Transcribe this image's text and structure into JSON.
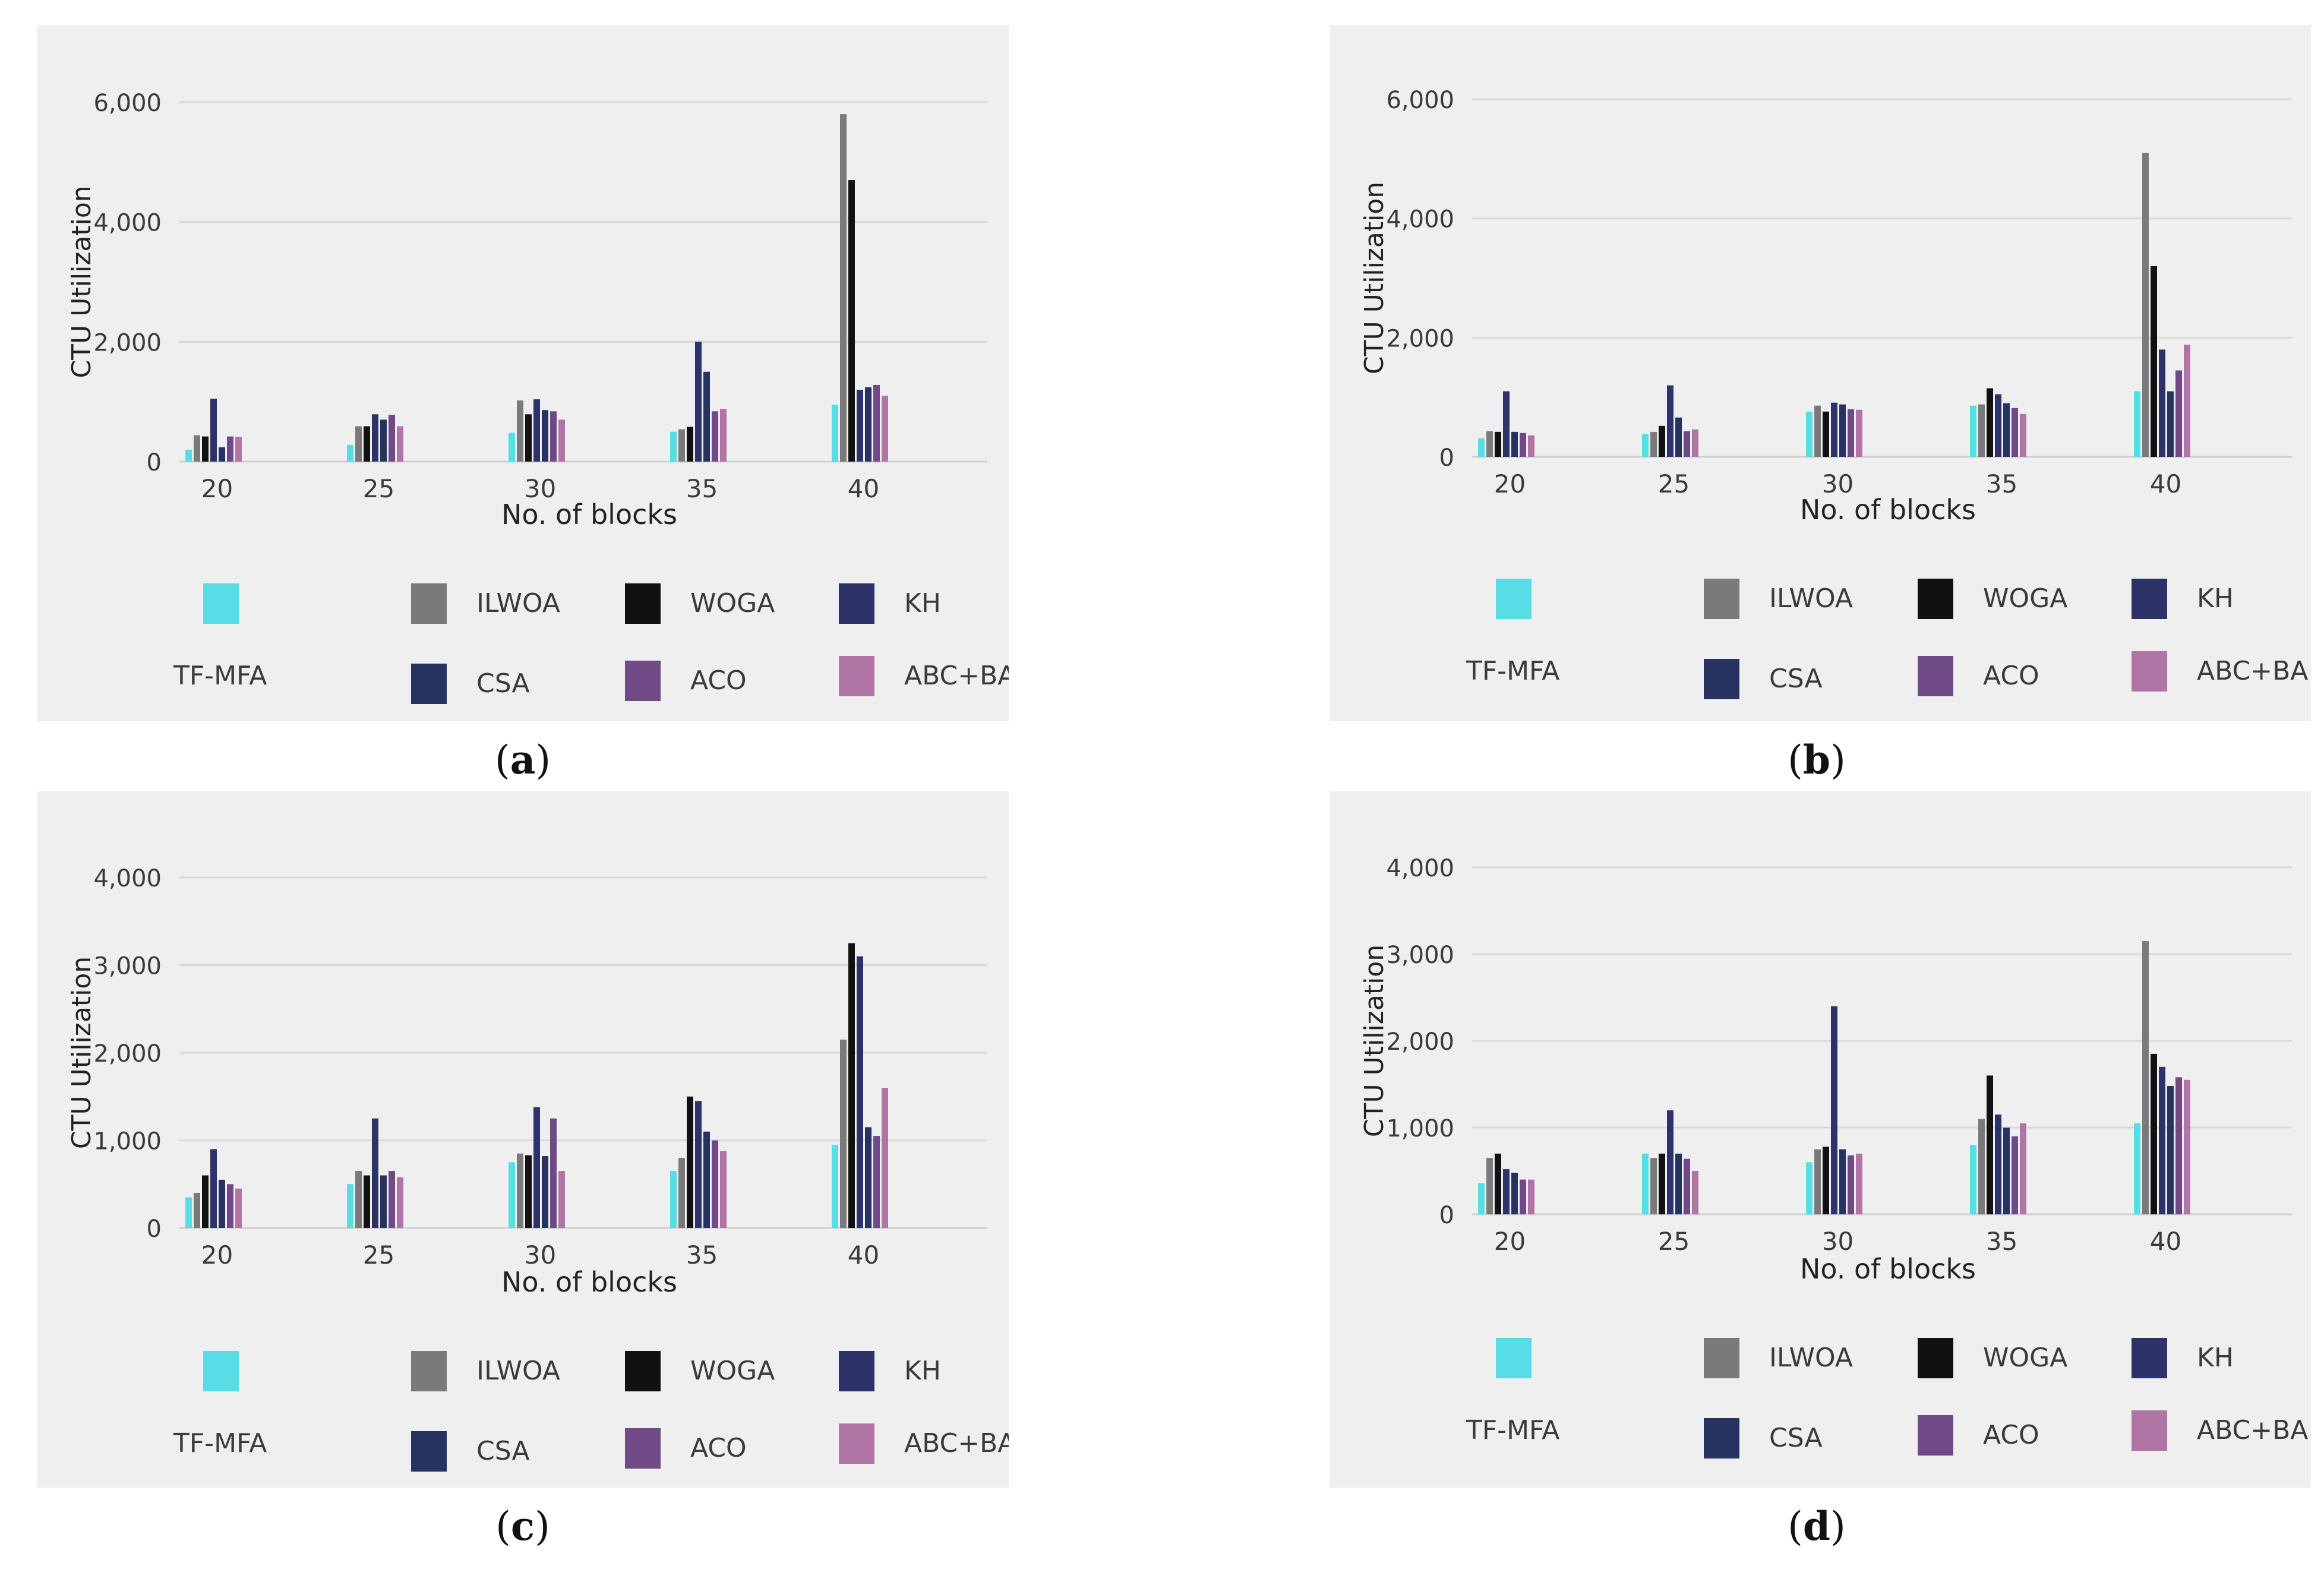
{
  "legend": {
    "series": [
      {
        "name": "TF-MFA",
        "color": "#56dde6"
      },
      {
        "name": "ILWOA",
        "color": "#7a7a7a"
      },
      {
        "name": "WOGA",
        "color": "#111111"
      },
      {
        "name": "KH",
        "color": "#2d3268"
      },
      {
        "name": "CSA",
        "color": "#273260"
      },
      {
        "name": "ACO",
        "color": "#704a86"
      },
      {
        "name": "ABC+BA",
        "color": "#b075a4"
      }
    ]
  },
  "chart_data": [
    {
      "type": "bar",
      "panel": "a",
      "caption_letter": "a",
      "xlabel": "No. of blocks",
      "ylabel": "CTU Utilization",
      "categories": [
        "20",
        "25",
        "30",
        "35",
        "40"
      ],
      "ylim": [
        0,
        6000
      ],
      "yticks": [
        "0",
        "2,000",
        "4,000",
        "6,000"
      ],
      "ytick_values": [
        0,
        2000,
        4000,
        6000
      ],
      "series": [
        {
          "name": "TF-MFA",
          "values": [
            200,
            280,
            480,
            500,
            950
          ]
        },
        {
          "name": "ILWOA",
          "values": [
            440,
            590,
            1020,
            540,
            5800
          ]
        },
        {
          "name": "WOGA",
          "values": [
            420,
            590,
            790,
            580,
            4700
          ]
        },
        {
          "name": "KH",
          "values": [
            1050,
            790,
            1040,
            2000,
            1200
          ]
        },
        {
          "name": "CSA",
          "values": [
            240,
            700,
            860,
            1500,
            1240
          ]
        },
        {
          "name": "ACO",
          "values": [
            420,
            780,
            840,
            840,
            1280
          ]
        },
        {
          "name": "ABC+BA",
          "values": [
            410,
            590,
            700,
            880,
            1100
          ]
        }
      ]
    },
    {
      "type": "bar",
      "panel": "b",
      "caption_letter": "b",
      "xlabel": "No. of blocks",
      "ylabel": "CTU Utilization",
      "categories": [
        "20",
        "25",
        "30",
        "35",
        "40"
      ],
      "ylim": [
        0,
        6000
      ],
      "yticks": [
        "0",
        "2,000",
        "4,000",
        "6,000"
      ],
      "ytick_values": [
        0,
        2000,
        4000,
        6000
      ],
      "series": [
        {
          "name": "TF-MFA",
          "values": [
            310,
            380,
            760,
            860,
            1100
          ]
        },
        {
          "name": "ILWOA",
          "values": [
            430,
            420,
            860,
            880,
            5100
          ]
        },
        {
          "name": "WOGA",
          "values": [
            420,
            520,
            760,
            1150,
            3200
          ]
        },
        {
          "name": "KH",
          "values": [
            1100,
            1200,
            910,
            1050,
            1800
          ]
        },
        {
          "name": "CSA",
          "values": [
            420,
            660,
            880,
            900,
            1100
          ]
        },
        {
          "name": "ACO",
          "values": [
            400,
            430,
            800,
            820,
            1450
          ]
        },
        {
          "name": "ABC+BA",
          "values": [
            360,
            460,
            790,
            720,
            1880
          ]
        }
      ]
    },
    {
      "type": "bar",
      "panel": "c",
      "caption_letter": "c",
      "xlabel": "No. of blocks",
      "ylabel": "CTU Utilization",
      "categories": [
        "20",
        "25",
        "30",
        "35",
        "40"
      ],
      "ylim": [
        0,
        4000
      ],
      "yticks": [
        "0",
        "1,000",
        "2,000",
        "3,000",
        "4,000"
      ],
      "ytick_values": [
        0,
        1000,
        2000,
        3000,
        4000
      ],
      "series": [
        {
          "name": "TF-MFA",
          "values": [
            350,
            500,
            750,
            650,
            950
          ]
        },
        {
          "name": "ILWOA",
          "values": [
            400,
            650,
            850,
            800,
            2150
          ]
        },
        {
          "name": "WOGA",
          "values": [
            600,
            600,
            830,
            1500,
            3250
          ]
        },
        {
          "name": "KH",
          "values": [
            900,
            1250,
            1380,
            1450,
            3100
          ]
        },
        {
          "name": "CSA",
          "values": [
            550,
            600,
            820,
            1100,
            1150
          ]
        },
        {
          "name": "ACO",
          "values": [
            500,
            650,
            1250,
            1000,
            1050
          ]
        },
        {
          "name": "ABC+BA",
          "values": [
            450,
            580,
            650,
            880,
            1600
          ]
        }
      ]
    },
    {
      "type": "bar",
      "panel": "d",
      "caption_letter": "d",
      "xlabel": "No. of blocks",
      "ylabel": "CTU Utilization",
      "categories": [
        "20",
        "25",
        "30",
        "35",
        "40"
      ],
      "ylim": [
        0,
        4000
      ],
      "yticks": [
        "0",
        "1,000",
        "2,000",
        "3,000",
        "4,000"
      ],
      "ytick_values": [
        0,
        1000,
        2000,
        3000,
        4000
      ],
      "series": [
        {
          "name": "TF-MFA",
          "values": [
            360,
            700,
            600,
            800,
            1050
          ]
        },
        {
          "name": "ILWOA",
          "values": [
            650,
            650,
            750,
            1100,
            3150
          ]
        },
        {
          "name": "WOGA",
          "values": [
            700,
            700,
            780,
            1600,
            1850
          ]
        },
        {
          "name": "KH",
          "values": [
            520,
            1200,
            2400,
            1150,
            1700
          ]
        },
        {
          "name": "CSA",
          "values": [
            480,
            700,
            750,
            1000,
            1480
          ]
        },
        {
          "name": "ACO",
          "values": [
            400,
            640,
            680,
            900,
            1580
          ]
        },
        {
          "name": "ABC+BA",
          "values": [
            400,
            500,
            700,
            1050,
            1550
          ]
        }
      ]
    }
  ]
}
